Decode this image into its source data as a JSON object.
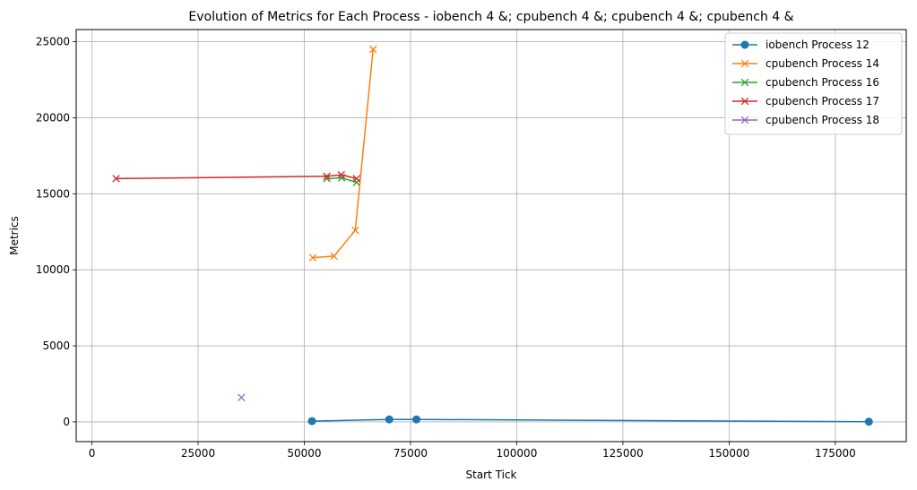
{
  "chart_data": {
    "type": "line",
    "title": "Evolution of Metrics for Each Process - iobench 4 &; cpubench 4 &; cpubench 4 &; cpubench 4 &",
    "xlabel": "Start Tick",
    "ylabel": "Metrics",
    "xlim": [
      -3700,
      191700
    ],
    "ylim": [
      -1300,
      25800
    ],
    "xticks": [
      0,
      25000,
      50000,
      75000,
      100000,
      125000,
      150000,
      175000
    ],
    "yticks": [
      0,
      5000,
      10000,
      15000,
      20000,
      25000
    ],
    "grid": true,
    "legend_position": "top-right",
    "series": [
      {
        "name": "iobench Process 12",
        "color": "#1f77b4",
        "marker": "circle",
        "x": [
          51800,
          70000,
          76400,
          182900
        ],
        "y": [
          50,
          160,
          160,
          10
        ]
      },
      {
        "name": "cpubench Process 14",
        "color": "#ff7f0e",
        "marker": "x",
        "x": [
          52000,
          57000,
          62000,
          66200
        ],
        "y": [
          10800,
          10900,
          12600,
          24500
        ]
      },
      {
        "name": "cpubench Process 16",
        "color": "#2ca02c",
        "marker": "x",
        "x": [
          55300,
          58800,
          62300
        ],
        "y": [
          16000,
          16050,
          15750
        ]
      },
      {
        "name": "cpubench Process 17",
        "color": "#d62728",
        "marker": "x",
        "x": [
          5700,
          55300,
          58700,
          62300
        ],
        "y": [
          16000,
          16150,
          16250,
          16000
        ]
      },
      {
        "name": "cpubench Process 18",
        "color": "#9467bd",
        "marker": "x",
        "x": [
          35200
        ],
        "y": [
          1600
        ]
      }
    ]
  }
}
